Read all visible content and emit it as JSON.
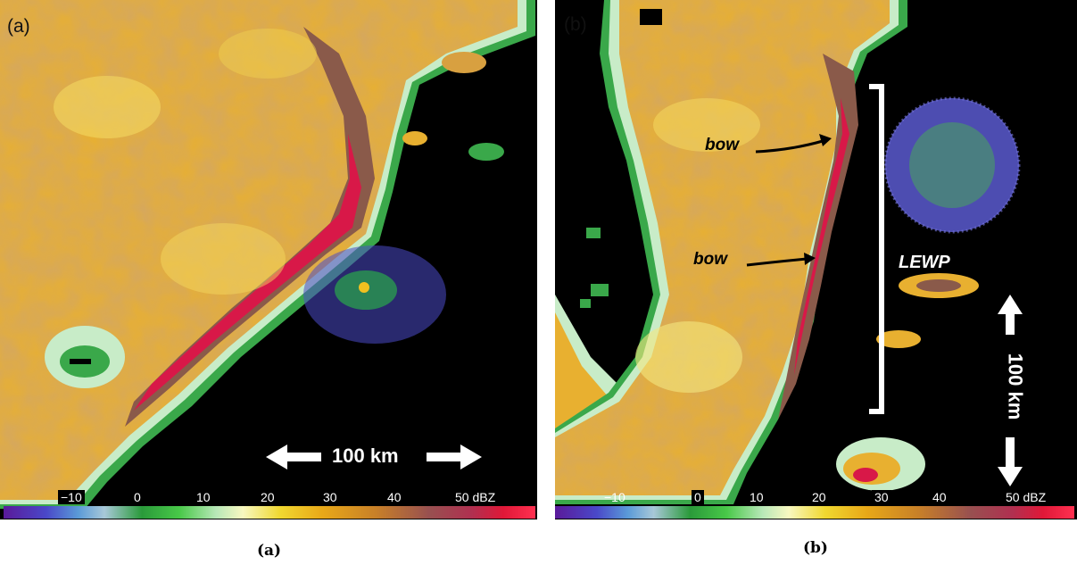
{
  "panel_a": {
    "label": "(a)",
    "scale_bar": "100 km",
    "colorbar_ticks": [
      "−10",
      "0",
      "10",
      "20",
      "30",
      "40",
      "50 dBZ"
    ]
  },
  "panel_b": {
    "label": "(b)",
    "scale_bar": "100 km",
    "annotations": [
      "bow",
      "bow",
      "LEWP"
    ],
    "colorbar_ticks": [
      "−10",
      "0",
      "10",
      "20",
      "30",
      "40",
      "50 dBZ"
    ]
  },
  "captions": [
    "(a)",
    "(b)"
  ],
  "colors": {
    "background_echo": "#e8b030",
    "strong_echo": "#8a5a4a",
    "core_echo": "#d81848",
    "edge_echo": "#3aa84a",
    "clutter": "#5a5ad0"
  }
}
